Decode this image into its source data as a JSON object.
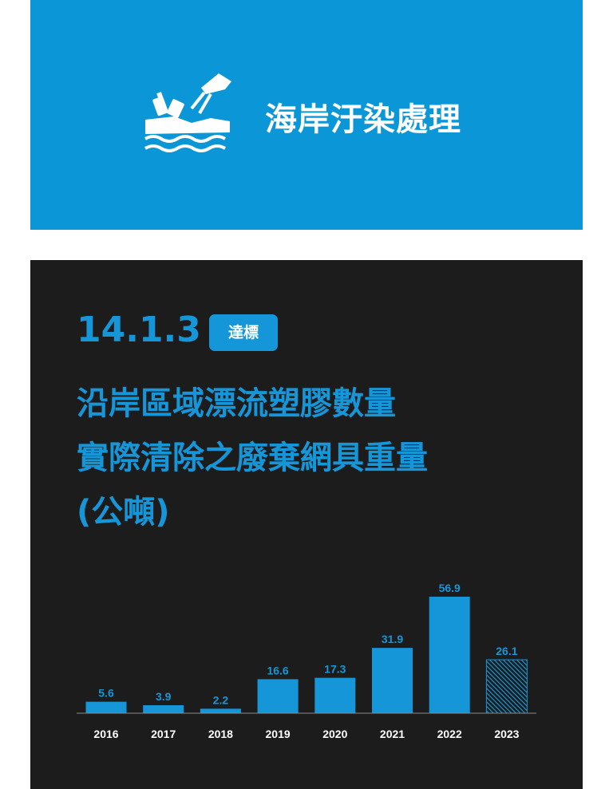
{
  "banner": {
    "title": "海岸汙染處理",
    "icon": "beach-cleanup-icon",
    "background_color": "#0b96d8"
  },
  "panel": {
    "background_color": "#1c1c1c",
    "indicator_code": "14.1.3",
    "badge_label": "達標",
    "metric_lines": [
      "沿岸區域漂流塑膠數量",
      "實際清除之廢棄網具重量",
      "(公噸)"
    ]
  },
  "chart_data": {
    "type": "bar",
    "categories": [
      "2016",
      "2017",
      "2018",
      "2019",
      "2020",
      "2021",
      "2022",
      "2023"
    ],
    "values": [
      5.6,
      3.9,
      2.2,
      16.6,
      17.3,
      31.9,
      56.9,
      26.1
    ],
    "value_labels": [
      "5.6",
      "3.9",
      "2.2",
      "16.6",
      "17.3",
      "31.9",
      "56.9",
      "26.1"
    ],
    "hatched": [
      false,
      false,
      false,
      false,
      false,
      false,
      false,
      true
    ],
    "ylim": [
      0,
      60
    ],
    "bar_color": "#1596d8",
    "title": "",
    "xlabel": "",
    "ylabel": ""
  }
}
